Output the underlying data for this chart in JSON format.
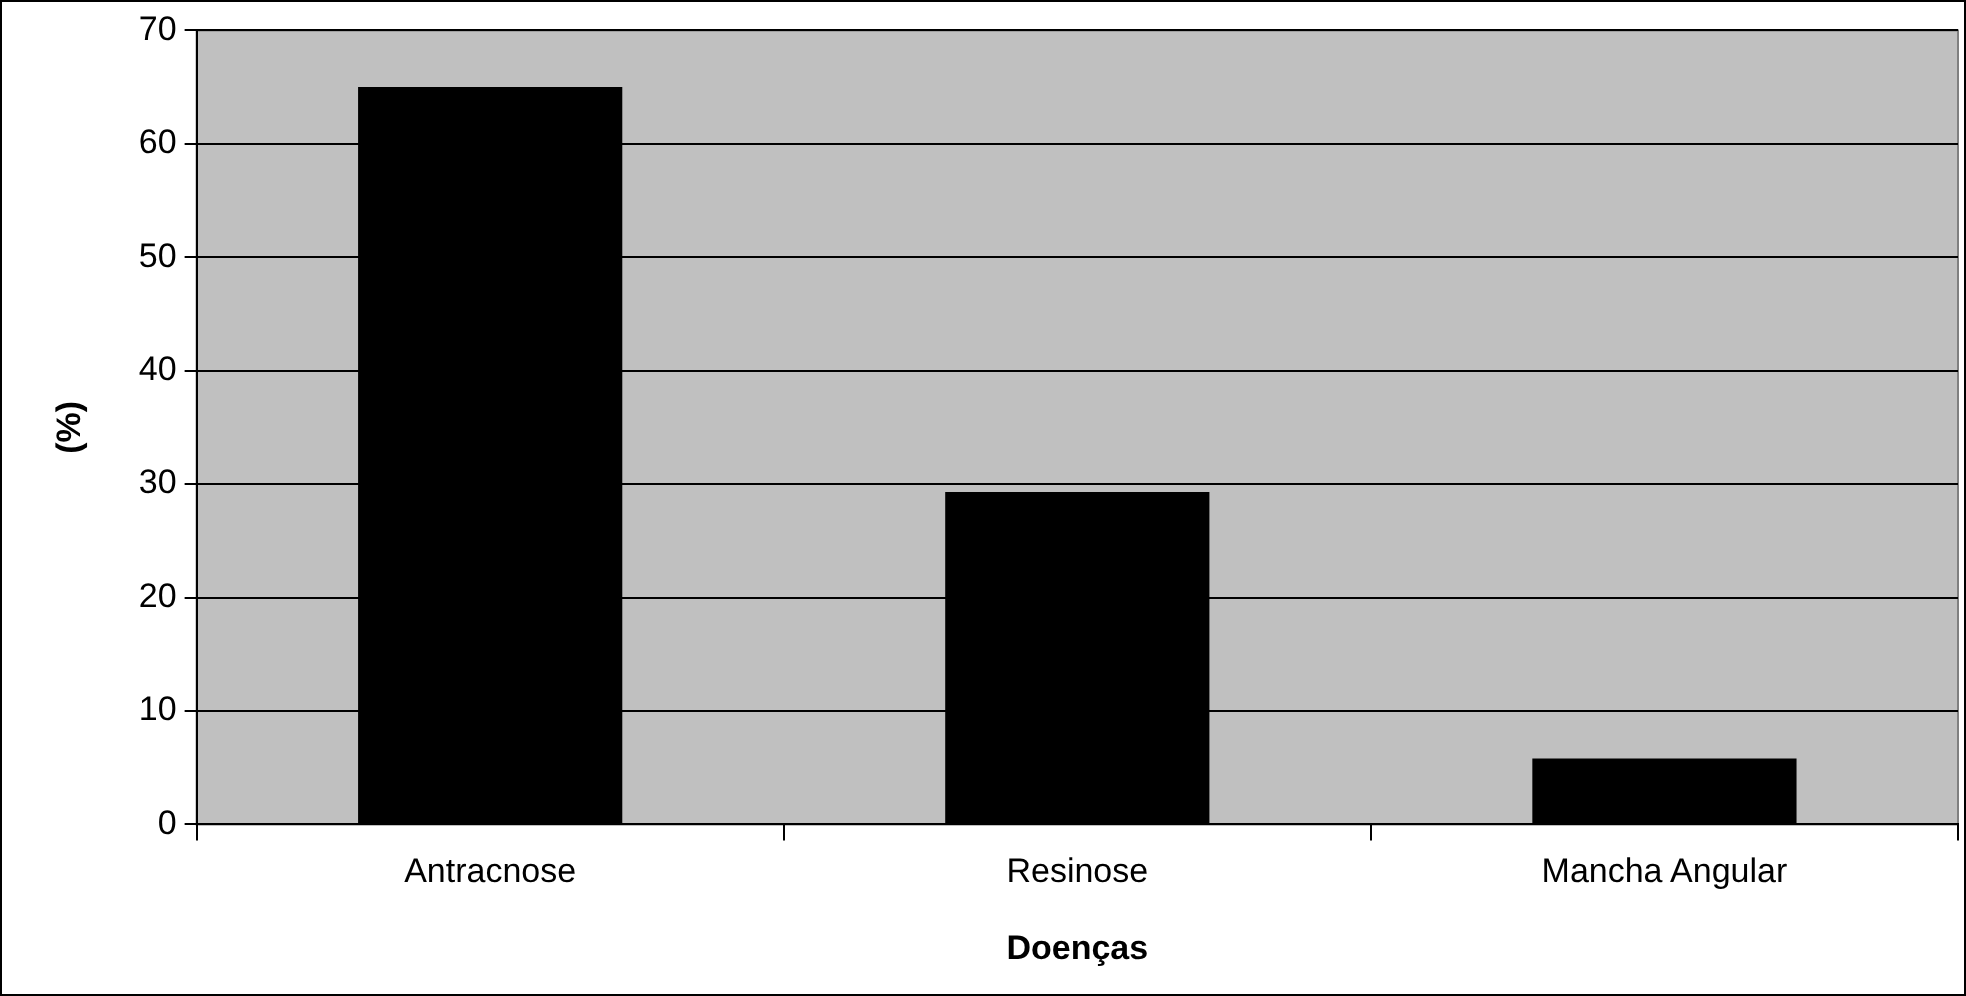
{
  "chart_data": {
    "type": "bar",
    "xlabel": "Doenças",
    "ylabel": "(%)",
    "categories": [
      "Antracnose",
      "Resinose",
      "Mancha Angular"
    ],
    "values": [
      65,
      29.3,
      5.8
    ],
    "color": "#000000",
    "ylim": [
      0,
      70
    ],
    "yticks": [
      0,
      10,
      20,
      30,
      40,
      50,
      60,
      70
    ],
    "grid": "y",
    "legend": false
  }
}
